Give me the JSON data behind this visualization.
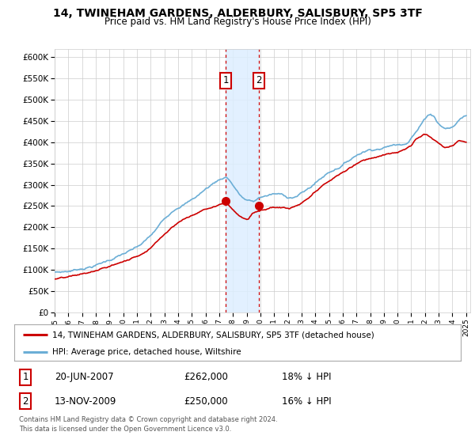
{
  "title": "14, TWINEHAM GARDENS, ALDERBURY, SALISBURY, SP5 3TF",
  "subtitle": "Price paid vs. HM Land Registry's House Price Index (HPI)",
  "ylim": [
    0,
    620000
  ],
  "yticks": [
    0,
    50000,
    100000,
    150000,
    200000,
    250000,
    300000,
    350000,
    400000,
    450000,
    500000,
    550000,
    600000
  ],
  "sale1_date": "20-JUN-2007",
  "sale1_price": 262000,
  "sale1_label": "18% ↓ HPI",
  "sale2_date": "13-NOV-2009",
  "sale2_price": 250000,
  "sale2_label": "16% ↓ HPI",
  "hpi_color": "#6baed6",
  "price_color": "#cc0000",
  "shaded_color": "#ddeeff",
  "legend_label1": "14, TWINEHAM GARDENS, ALDERBURY, SALISBURY, SP5 3TF (detached house)",
  "legend_label2": "HPI: Average price, detached house, Wiltshire",
  "footnote": "Contains HM Land Registry data © Crown copyright and database right 2024.\nThis data is licensed under the Open Government Licence v3.0.",
  "background_color": "#ffffff",
  "grid_color": "#cccccc",
  "sale1_year": 2007.47,
  "sale2_year": 2009.87
}
